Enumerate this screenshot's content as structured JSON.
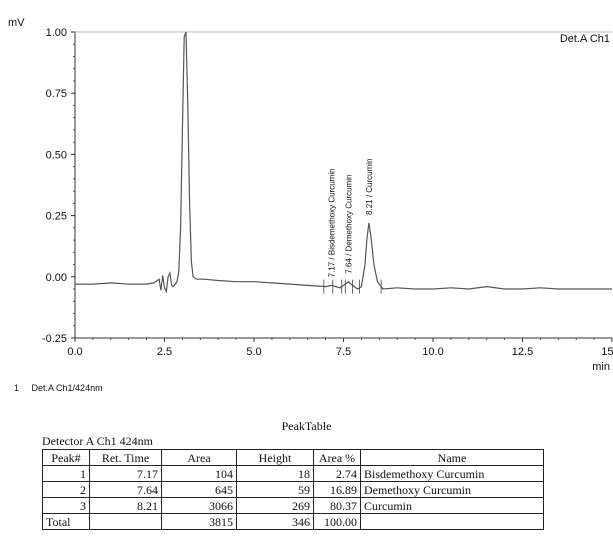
{
  "chart_data": {
    "type": "line",
    "title": "",
    "ylabel": "mV",
    "xlabel": "min",
    "xlim": [
      0.0,
      15.0
    ],
    "ylim": [
      -0.25,
      1.0
    ],
    "xticks": [
      "0.0",
      "2.5",
      "5.0",
      "7.5",
      "10.0",
      "12.5",
      "15.0"
    ],
    "yticks": [
      "1.00",
      "0.75",
      "0.50",
      "0.25",
      "0.00",
      "-0.25"
    ],
    "legend": "Det.A Ch1",
    "grid": false,
    "series": [
      {
        "name": "Det.A Ch1",
        "x": [
          0.0,
          0.5,
          1.0,
          1.5,
          2.0,
          2.2,
          2.35,
          2.4,
          2.45,
          2.5,
          2.55,
          2.6,
          2.65,
          2.7,
          2.75,
          2.8,
          2.85,
          2.9,
          2.95,
          3.0,
          3.05,
          3.1,
          3.15,
          3.2,
          3.25,
          3.3,
          3.4,
          3.6,
          4.0,
          4.5,
          5.0,
          5.5,
          6.0,
          6.5,
          7.0,
          7.17,
          7.4,
          7.55,
          7.64,
          7.75,
          7.9,
          8.0,
          8.1,
          8.15,
          8.21,
          8.27,
          8.35,
          8.45,
          8.6,
          9.0,
          9.5,
          10.0,
          10.5,
          11.0,
          11.5,
          12.0,
          12.5,
          13.0,
          13.5,
          14.0,
          14.5,
          15.0
        ],
        "y": [
          -0.03,
          -0.03,
          -0.025,
          -0.03,
          -0.03,
          -0.025,
          -0.01,
          -0.055,
          0.005,
          -0.045,
          -0.06,
          0.0,
          0.015,
          -0.035,
          -0.04,
          -0.03,
          -0.02,
          0.02,
          0.2,
          0.6,
          0.98,
          1.0,
          0.7,
          0.3,
          0.06,
          0.0,
          -0.01,
          -0.01,
          -0.015,
          -0.02,
          -0.02,
          -0.025,
          -0.03,
          -0.035,
          -0.04,
          -0.035,
          -0.045,
          -0.03,
          -0.02,
          -0.035,
          -0.05,
          -0.04,
          0.05,
          0.15,
          0.22,
          0.16,
          0.05,
          -0.02,
          -0.05,
          -0.045,
          -0.05,
          -0.05,
          -0.045,
          -0.05,
          -0.04,
          -0.05,
          -0.05,
          -0.045,
          -0.05,
          -0.05,
          -0.05,
          -0.05
        ]
      }
    ],
    "annotations": [
      {
        "x": 7.17,
        "text": "7.17 / Bisdemethoxy Curcumin"
      },
      {
        "x": 7.64,
        "text": "7.64 / Demethoxy Curcumin"
      },
      {
        "x": 8.21,
        "text": "8.21 / Curcumin"
      }
    ],
    "baseline_ticks": [
      6.95,
      7.2,
      7.45,
      7.55,
      7.75,
      7.95,
      8.55
    ]
  },
  "footnote": {
    "index": "1",
    "label": "Det.A Ch1/424nm"
  },
  "peak_table": {
    "title": "PeakTable",
    "detector": "Detector A Ch1 424nm",
    "headers": [
      "Peak#",
      "Ret. Time",
      "Area",
      "Height",
      "Area %",
      "Name"
    ],
    "rows": [
      [
        "1",
        "7.17",
        "104",
        "18",
        "2.74",
        "Bisdemethoxy Curcumin"
      ],
      [
        "2",
        "7.64",
        "645",
        "59",
        "16.89",
        "Demethoxy Curcumin"
      ],
      [
        "3",
        "8.21",
        "3066",
        "269",
        "80.37",
        "Curcumin"
      ]
    ],
    "total": [
      "Total",
      "",
      "3815",
      "346",
      "100.00",
      ""
    ]
  }
}
